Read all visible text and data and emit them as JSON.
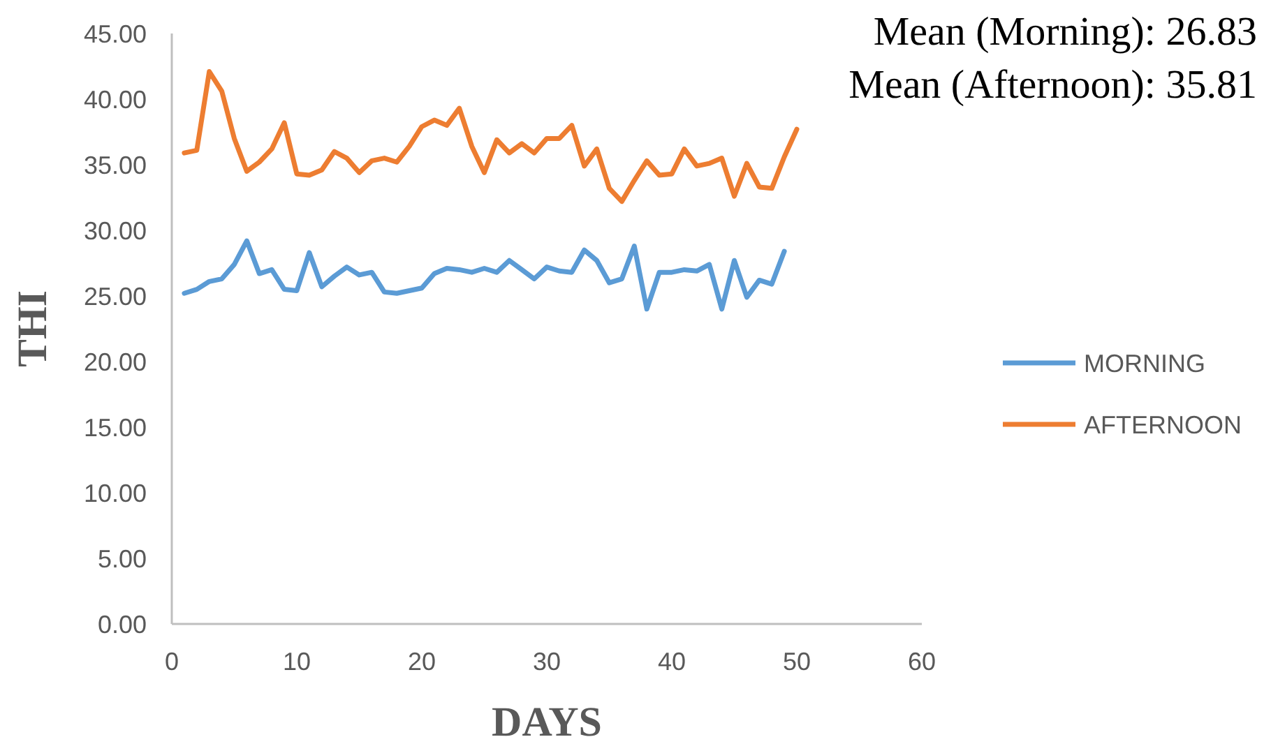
{
  "chart_data": {
    "type": "line",
    "xlabel": "DAYS",
    "ylabel": "THI",
    "annotations": [
      "Mean (Morning): 26.83",
      "Mean (Afternoon): 35.81"
    ],
    "xlim": [
      0,
      60
    ],
    "xticks": [
      0,
      10,
      20,
      30,
      40,
      50,
      60
    ],
    "ylim": [
      0,
      45
    ],
    "yticks": [
      {
        "value": 0,
        "label": "0.00"
      },
      {
        "value": 5,
        "label": "5.00"
      },
      {
        "value": 10,
        "label": "10.00"
      },
      {
        "value": 15,
        "label": "15.00"
      },
      {
        "value": 20,
        "label": "20.00"
      },
      {
        "value": 25,
        "label": "25.00"
      },
      {
        "value": 30,
        "label": "30.00"
      },
      {
        "value": 35,
        "label": "35.00"
      },
      {
        "value": 40,
        "label": "40.00"
      },
      {
        "value": 45,
        "label": "45.00"
      }
    ],
    "grid": false,
    "legend": "right",
    "marker": "none",
    "line_style": "solid",
    "series": [
      {
        "name": "MORNING",
        "color": "#5b9bd5",
        "x": [
          1,
          2,
          3,
          4,
          5,
          6,
          7,
          8,
          9,
          10,
          11,
          12,
          13,
          14,
          15,
          16,
          17,
          18,
          19,
          20,
          21,
          22,
          23,
          24,
          25,
          26,
          27,
          28,
          29,
          30,
          31,
          32,
          33,
          34,
          35,
          36,
          37,
          38,
          39,
          40,
          41,
          42,
          43,
          44,
          45,
          46,
          47,
          48,
          49
        ],
        "values": [
          25.2,
          25.5,
          26.1,
          26.3,
          27.4,
          29.2,
          26.7,
          27.0,
          25.5,
          25.4,
          28.3,
          25.7,
          26.5,
          27.2,
          26.6,
          26.8,
          25.3,
          25.2,
          25.4,
          25.6,
          26.7,
          27.1,
          27.0,
          26.8,
          27.1,
          26.8,
          27.7,
          27.0,
          26.3,
          27.2,
          26.9,
          26.8,
          28.5,
          27.7,
          26.0,
          26.3,
          28.8,
          24.0,
          26.8,
          26.8,
          27.0,
          26.9,
          27.4,
          24.0,
          27.7,
          24.9,
          26.2,
          25.9,
          28.4
        ]
      },
      {
        "name": "AFTERNOON",
        "color": "#ed7d31",
        "x": [
          1,
          2,
          3,
          4,
          5,
          6,
          7,
          8,
          9,
          10,
          11,
          12,
          13,
          14,
          15,
          16,
          17,
          18,
          19,
          20,
          21,
          22,
          23,
          24,
          25,
          26,
          27,
          28,
          29,
          30,
          31,
          32,
          33,
          34,
          35,
          36,
          37,
          38,
          39,
          40,
          41,
          42,
          43,
          44,
          45,
          46,
          47,
          48,
          49,
          50
        ],
        "values": [
          35.9,
          36.1,
          42.1,
          40.6,
          37.0,
          34.5,
          35.2,
          36.2,
          38.2,
          34.3,
          34.2,
          34.6,
          36.0,
          35.5,
          34.4,
          35.3,
          35.5,
          35.2,
          36.4,
          37.9,
          38.4,
          38.0,
          39.3,
          36.4,
          34.4,
          36.9,
          35.9,
          36.6,
          35.9,
          37.0,
          37.0,
          38.0,
          34.9,
          36.2,
          33.2,
          32.2,
          33.8,
          35.3,
          34.2,
          34.3,
          36.2,
          34.9,
          35.1,
          35.5,
          32.6,
          35.1,
          33.3,
          33.2,
          35.6,
          37.7
        ]
      }
    ]
  }
}
